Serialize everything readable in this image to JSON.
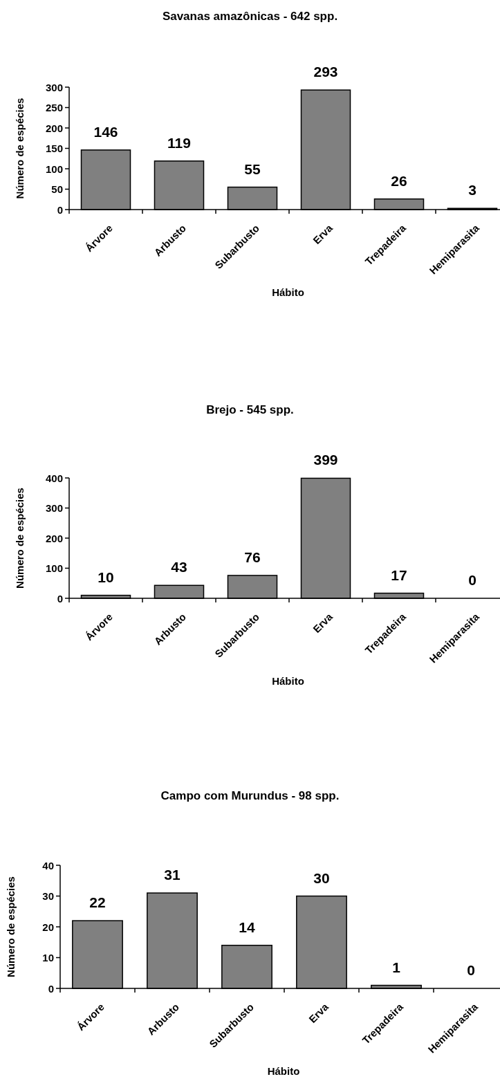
{
  "chart_data": [
    {
      "type": "bar",
      "title": "Savanas amazônicas - 642 spp.",
      "xlabel": "Hábito",
      "ylabel": "Número de espécies",
      "categories": [
        "Árvore",
        "Arbusto",
        "Subarbusto",
        "Erva",
        "Trepadeira",
        "Hemiparasita"
      ],
      "values": [
        146,
        119,
        55,
        293,
        26,
        3
      ],
      "color": "#808080",
      "ylim": [
        0,
        300
      ],
      "yticks": [
        0,
        50,
        100,
        150,
        200,
        250,
        300
      ],
      "data_labels": true
    },
    {
      "type": "bar",
      "title": "Brejo - 545 spp.",
      "xlabel": "Hábito",
      "ylabel": "Número de espécies",
      "categories": [
        "Árvore",
        "Arbusto",
        "Subarbusto",
        "Erva",
        "Trepadeira",
        "Hemiparasita"
      ],
      "values": [
        10,
        43,
        76,
        399,
        17,
        0
      ],
      "color": "#808080",
      "ylim": [
        0,
        400
      ],
      "yticks": [
        0,
        100,
        200,
        300,
        400
      ],
      "data_labels": true
    },
    {
      "type": "bar",
      "title": "Campo com Murundus - 98 spp.",
      "xlabel": "Hábito",
      "ylabel": "Número de espécies",
      "categories": [
        "Árvore",
        "Arbusto",
        "Subarbusto",
        "Erva",
        "Trepadeira",
        "Hemiparasita"
      ],
      "values": [
        22,
        31,
        14,
        30,
        1,
        0
      ],
      "color": "#808080",
      "ylim": [
        0,
        40
      ],
      "yticks": [
        0,
        10,
        20,
        30,
        40
      ],
      "data_labels": true
    }
  ]
}
